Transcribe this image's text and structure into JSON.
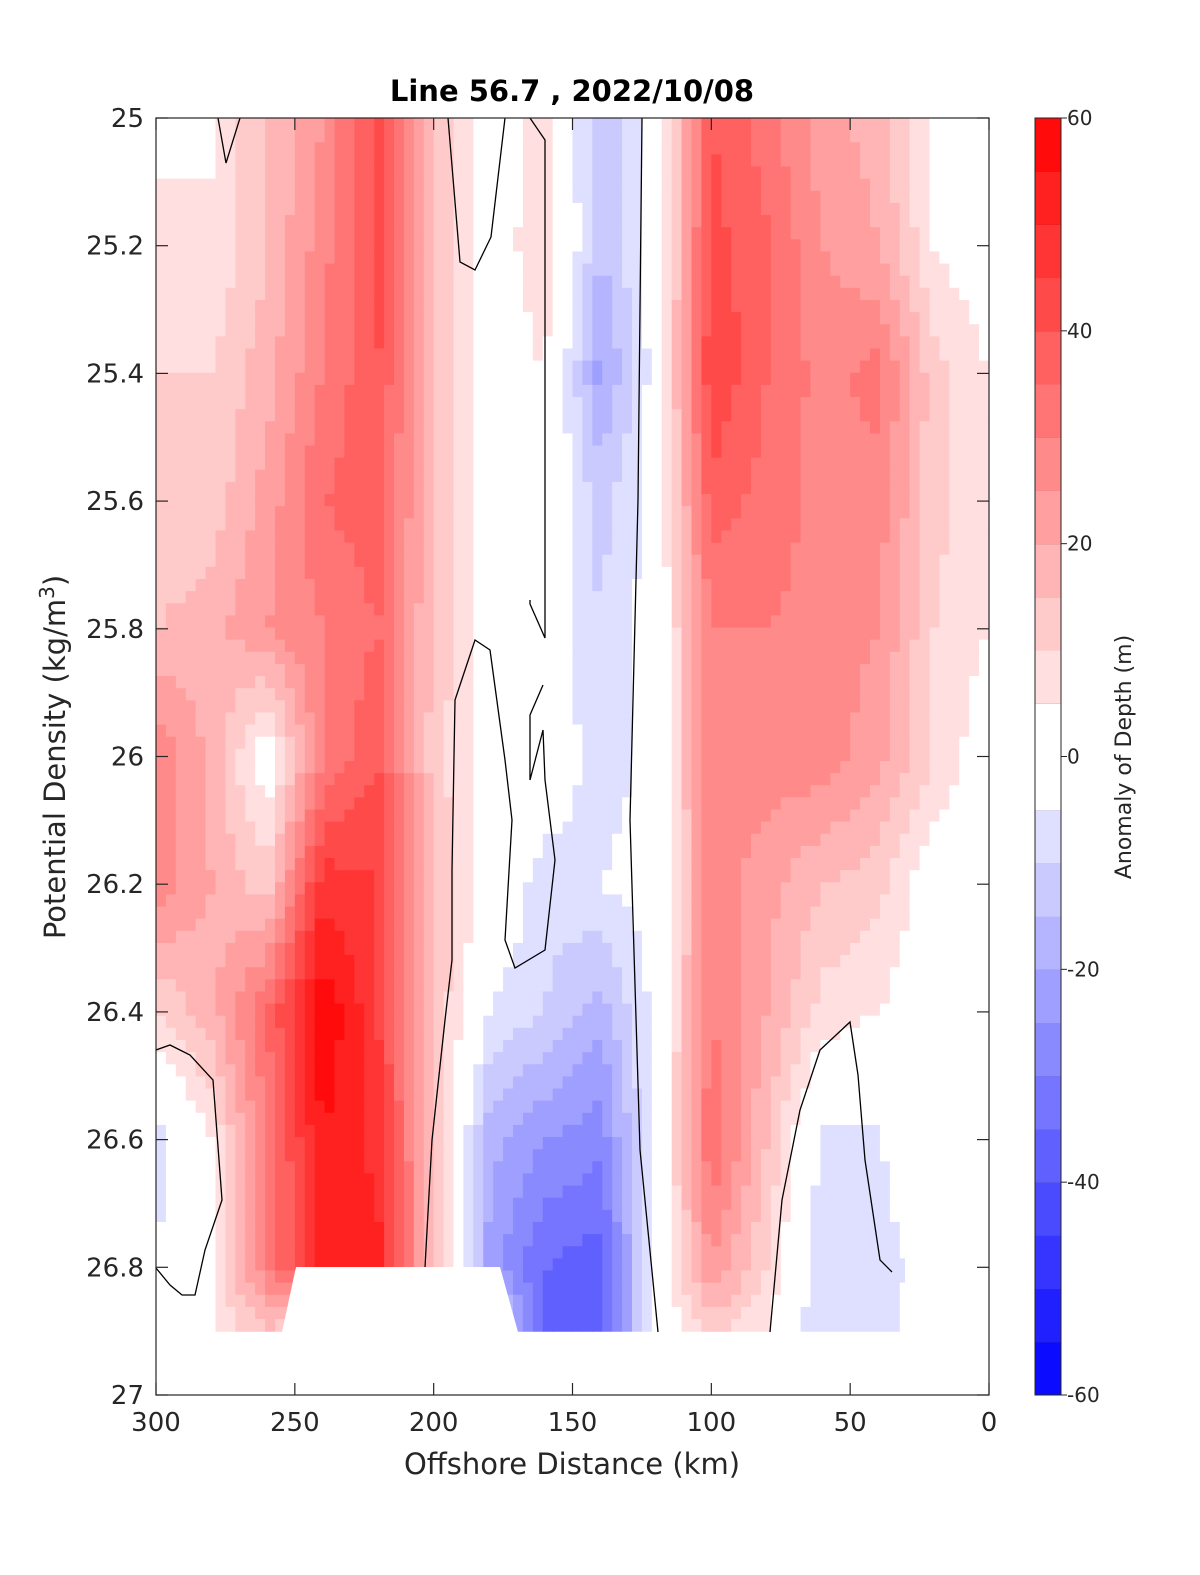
{
  "chart_data": {
    "type": "heatmap",
    "title": "Line 56.7 , 2022/10/08",
    "xlabel": "Offshore Distance (km)",
    "ylabel_main": "Potential Density (kg/m",
    "ylabel_sup": "3",
    "ylabel_close": ")",
    "colorbar_label": "Anomaly of Depth (m)",
    "xlim": [
      300,
      0
    ],
    "ylim": [
      25,
      27
    ],
    "x_ticks": [
      300,
      250,
      200,
      150,
      100,
      50,
      0
    ],
    "x_tick_labels": [
      "300",
      "250",
      "200",
      "150",
      "100",
      "50",
      "0"
    ],
    "y_ticks": [
      25,
      25.2,
      25.4,
      25.6,
      25.8,
      26,
      26.2,
      26.4,
      26.6,
      26.8,
      27
    ],
    "y_tick_labels": [
      "25",
      "25.2",
      "25.4",
      "25.6",
      "25.8",
      "26",
      "26.2",
      "26.4",
      "26.6",
      "26.8",
      "27"
    ],
    "colorbar_range": [
      -60,
      60
    ],
    "colorbar_ticks": [
      60,
      40,
      20,
      0,
      -20,
      -40,
      -60
    ],
    "colorbar_tick_labels": [
      "60",
      "40",
      "20",
      "0",
      "-20",
      "-40",
      "-60"
    ],
    "contour_levels": 24,
    "colormap": {
      "low": "#0000ff",
      "mid": "#ffffff",
      "high": "#ff0000"
    },
    "grid": false,
    "x_stations": [
      300,
      280,
      260,
      240,
      220,
      200,
      180,
      160,
      140,
      120,
      100,
      80,
      60,
      40,
      20,
      0
    ],
    "y_levels": [
      25,
      25.2,
      25.4,
      25.6,
      25.8,
      26,
      26.2,
      26.4,
      26.6,
      26.8,
      26.9
    ],
    "anomaly_m": [
      [
        0,
        5,
        15,
        25,
        42,
        15,
        0,
        8,
        -15,
        -2,
        40,
        32,
        22,
        18,
        5,
        0
      ],
      [
        10,
        5,
        15,
        28,
        42,
        15,
        0,
        10,
        -15,
        -2,
        42,
        36,
        25,
        20,
        5,
        0
      ],
      [
        10,
        10,
        18,
        30,
        40,
        15,
        0,
        5,
        -22,
        -2,
        45,
        35,
        28,
        32,
        12,
        5
      ],
      [
        10,
        12,
        22,
        35,
        38,
        15,
        0,
        2,
        -12,
        -2,
        38,
        33,
        28,
        28,
        12,
        5
      ],
      [
        15,
        18,
        25,
        30,
        35,
        14,
        2,
        0,
        -10,
        -2,
        30,
        30,
        28,
        25,
        10,
        5
      ],
      [
        30,
        18,
        0,
        30,
        40,
        12,
        2,
        0,
        -8,
        -3,
        30,
        28,
        28,
        22,
        10,
        0
      ],
      [
        28,
        20,
        12,
        48,
        45,
        15,
        2,
        -8,
        -5,
        -2,
        28,
        22,
        15,
        12,
        0,
        0
      ],
      [
        10,
        18,
        35,
        60,
        45,
        15,
        -5,
        -10,
        -18,
        -3,
        30,
        20,
        8,
        5,
        0,
        0
      ],
      [
        -8,
        5,
        30,
        55,
        48,
        15,
        -18,
        -25,
        -28,
        -3,
        35,
        15,
        -6,
        -6,
        10,
        0
      ],
      [
        -5,
        5,
        30,
        52,
        52,
        15,
        -22,
        -35,
        -38,
        -3,
        25,
        10,
        -10,
        -10,
        0,
        0
      ],
      [
        0,
        5,
        15,
        0,
        0,
        0,
        0,
        -40,
        -38,
        -2,
        12,
        5,
        -10,
        -8,
        0,
        0
      ]
    ],
    "mask_note": "white where no data"
  }
}
